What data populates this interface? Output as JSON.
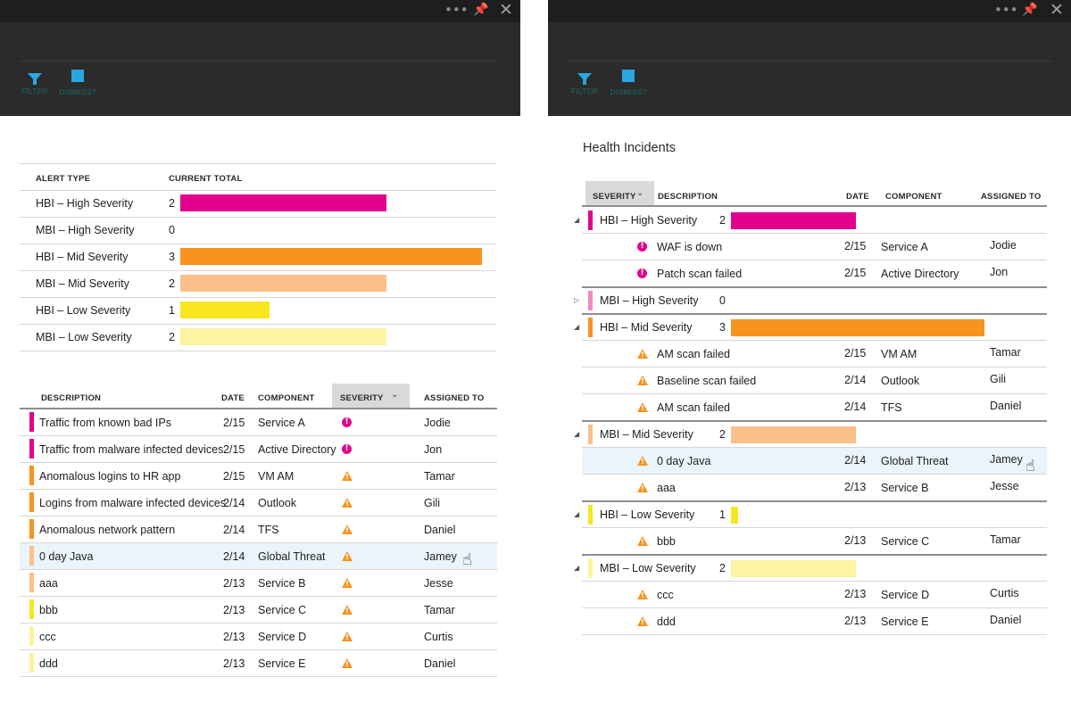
{
  "header_controls": {
    "more": "•••",
    "pin": "📌",
    "close": "✕"
  },
  "commands": [
    {
      "id": "filter",
      "label": "FILTER",
      "icon": "filter-icon"
    },
    {
      "id": "dismiss",
      "label": "DISMISS?",
      "icon": "dismiss-icon"
    }
  ],
  "colors": {
    "HBI – High Severity": "#e3008c",
    "MBI – High Severity": "#f18ac2",
    "HBI – Mid Severity": "#f7931e",
    "MBI – Mid Severity": "#fbc08a",
    "HBI – Low Severity": "#f7e620",
    "MBI – Low Severity": "#fbf4a0",
    "critical": "#e3008c",
    "warning": "#f7931e"
  },
  "summary": {
    "headers": {
      "alert_type": "ALERT TYPE",
      "current_total": "CURRENT TOTAL"
    },
    "rows": [
      {
        "type": "HBI – High Severity",
        "total": "2"
      },
      {
        "type": "MBI – High Severity",
        "total": "0"
      },
      {
        "type": "HBI – Mid Severity",
        "total": "3"
      },
      {
        "type": "MBI – Mid Severity",
        "total": "2"
      },
      {
        "type": "HBI – Low Severity",
        "total": "1"
      },
      {
        "type": "MBI – Low Severity",
        "total": "2"
      }
    ]
  },
  "alerts_table": {
    "headers": {
      "description": "DESCRIPTION",
      "date": "DATE",
      "component": "COMPONENT",
      "severity": "SEVERITY",
      "assigned": "ASSIGNED TO"
    },
    "rows": [
      {
        "description": "Traffic from known bad IPs",
        "date": "2/15",
        "component": "Service A",
        "assigned": "Jodie",
        "level": "critical",
        "type": "HBI – High Severity"
      },
      {
        "description": "Traffic from malware infected devices",
        "date": "2/15",
        "component": "Active Directory",
        "assigned": "Jon",
        "level": "critical",
        "type": "HBI – High Severity"
      },
      {
        "description": "Anomalous logins to HR app",
        "date": "2/15",
        "component": "VM AM",
        "assigned": "Tamar",
        "level": "warning",
        "type": "HBI – Mid Severity"
      },
      {
        "description": "Logins from malware infected devices",
        "date": "2/14",
        "component": "Outlook",
        "assigned": "Gili",
        "level": "warning",
        "type": "HBI – Mid Severity"
      },
      {
        "description": "Anomalous network pattern",
        "date": "2/14",
        "component": "TFS",
        "assigned": "Daniel",
        "level": "warning",
        "type": "HBI – Mid Severity"
      },
      {
        "description": "0 day Java",
        "date": "2/14",
        "component": "Global Threat",
        "assigned": "Jamey",
        "level": "warning",
        "type": "MBI – Mid Severity",
        "highlighted": true
      },
      {
        "description": "aaa",
        "date": "2/13",
        "component": "Service B",
        "assigned": "Jesse",
        "level": "warning",
        "type": "MBI – Mid Severity"
      },
      {
        "description": "bbb",
        "date": "2/13",
        "component": "Service C",
        "assigned": "Tamar",
        "level": "warning",
        "type": "HBI – Low Severity"
      },
      {
        "description": "ccc",
        "date": "2/13",
        "component": "Service D",
        "assigned": "Curtis",
        "level": "warning",
        "type": "MBI – Low Severity"
      },
      {
        "description": "ddd",
        "date": "2/13",
        "component": "Service E",
        "assigned": "Daniel",
        "level": "warning",
        "type": "MBI – Low Severity"
      }
    ]
  },
  "health_incidents": {
    "title": "Health Incidents",
    "headers": {
      "severity": "SEVERITY",
      "description": "DESCRIPTION",
      "date": "DATE",
      "component": "COMPONENT",
      "assigned": "ASSIGNED TO"
    },
    "groups": [
      {
        "type": "HBI – High Severity",
        "total": "2",
        "expanded": true,
        "items": [
          {
            "description": "WAF is down",
            "date": "2/15",
            "component": "Service A",
            "assigned": "Jodie",
            "level": "critical"
          },
          {
            "description": "Patch scan failed",
            "date": "2/15",
            "component": "Active Directory",
            "assigned": "Jon",
            "level": "critical"
          }
        ]
      },
      {
        "type": "MBI – High Severity",
        "total": "0",
        "expanded": false,
        "items": []
      },
      {
        "type": "HBI – Mid Severity",
        "total": "3",
        "expanded": true,
        "items": [
          {
            "description": "AM scan failed",
            "date": "2/15",
            "component": "VM AM",
            "assigned": "Tamar",
            "level": "warning"
          },
          {
            "description": "Baseline scan failed",
            "date": "2/14",
            "component": "Outlook",
            "assigned": "Gili",
            "level": "warning"
          },
          {
            "description": "AM scan failed",
            "date": "2/14",
            "component": "TFS",
            "assigned": "Daniel",
            "level": "warning"
          }
        ]
      },
      {
        "type": "MBI – Mid Severity",
        "total": "2",
        "expanded": true,
        "items": [
          {
            "description": "0 day Java",
            "date": "2/14",
            "component": "Global Threat",
            "assigned": "Jamey",
            "level": "warning",
            "highlighted": true
          },
          {
            "description": "aaa",
            "date": "2/13",
            "component": "Service B",
            "assigned": "Jesse",
            "level": "warning"
          }
        ]
      },
      {
        "type": "HBI – Low Severity",
        "total": "1",
        "expanded": true,
        "items": [
          {
            "description": "bbb",
            "date": "2/13",
            "component": "Service C",
            "assigned": "Tamar",
            "level": "warning"
          }
        ]
      },
      {
        "type": "MBI – Low Severity",
        "total": "2",
        "expanded": true,
        "items": [
          {
            "description": "ccc",
            "date": "2/13",
            "component": "Service D",
            "assigned": "Curtis",
            "level": "warning"
          },
          {
            "description": "ddd",
            "date": "2/13",
            "component": "Service E",
            "assigned": "Daniel",
            "level": "warning"
          }
        ]
      }
    ]
  }
}
